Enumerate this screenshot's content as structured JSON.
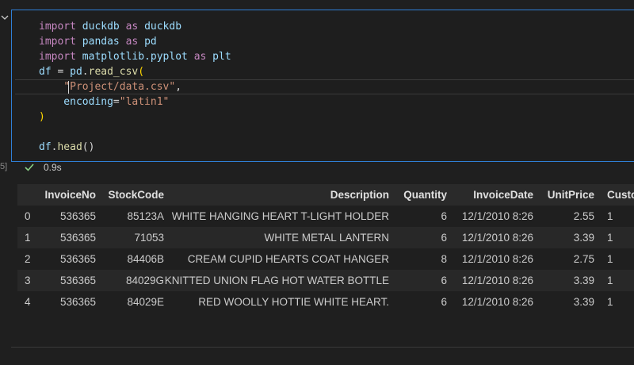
{
  "gutter": {
    "cell_label": "5]"
  },
  "code": {
    "lines": [
      [
        {
          "text": "import",
          "color": "#c586c0"
        },
        {
          "text": " duckdb ",
          "color": "#9cdcfe"
        },
        {
          "text": "as",
          "color": "#c586c0"
        },
        {
          "text": " duckdb",
          "color": "#9cdcfe"
        }
      ],
      [
        {
          "text": "import",
          "color": "#c586c0"
        },
        {
          "text": " pandas ",
          "color": "#9cdcfe"
        },
        {
          "text": "as",
          "color": "#c586c0"
        },
        {
          "text": " pd",
          "color": "#9cdcfe"
        }
      ],
      [
        {
          "text": "import",
          "color": "#c586c0"
        },
        {
          "text": " matplotlib.pyplot ",
          "color": "#9cdcfe"
        },
        {
          "text": "as",
          "color": "#c586c0"
        },
        {
          "text": " plt",
          "color": "#9cdcfe"
        }
      ],
      [
        {
          "text": "df",
          "color": "#9cdcfe"
        },
        {
          "text": " = ",
          "color": "#d4d4d4"
        },
        {
          "text": "pd",
          "color": "#9cdcfe"
        },
        {
          "text": ".",
          "color": "#d4d4d4"
        },
        {
          "text": "read_csv",
          "color": "#dcdcaa"
        },
        {
          "text": "(",
          "color": "#ffd700"
        }
      ],
      [
        {
          "text": "    \"Project/data.csv\"",
          "color": "#ce9178"
        },
        {
          "text": ",",
          "color": "#d4d4d4"
        }
      ],
      [
        {
          "text": "    encoding",
          "color": "#9cdcfe"
        },
        {
          "text": "=",
          "color": "#d4d4d4"
        },
        {
          "text": "\"latin1\"",
          "color": "#ce9178"
        }
      ],
      [
        {
          "text": ")",
          "color": "#ffd700"
        }
      ],
      [],
      [
        {
          "text": "df",
          "color": "#9cdcfe"
        },
        {
          "text": ".",
          "color": "#d4d4d4"
        },
        {
          "text": "head",
          "color": "#dcdcaa"
        },
        {
          "text": "()",
          "color": "#d4d4d4"
        }
      ]
    ]
  },
  "status": {
    "duration": "0.9s",
    "color": "#89d185"
  },
  "table": {
    "columns": [
      null,
      "InvoiceNo",
      "StockCode",
      "Description",
      "Quantity",
      "InvoiceDate",
      "UnitPrice",
      "Custo"
    ],
    "rows": [
      [
        "0",
        "536365",
        "85123A",
        "WHITE HANGING HEART T-LIGHT HOLDER",
        "6",
        "12/1/2010 8:26",
        "2.55",
        "1"
      ],
      [
        "1",
        "536365",
        "71053",
        "WHITE METAL LANTERN",
        "6",
        "12/1/2010 8:26",
        "3.39",
        "1"
      ],
      [
        "2",
        "536365",
        "84406B",
        "CREAM CUPID HEARTS COAT HANGER",
        "8",
        "12/1/2010 8:26",
        "2.75",
        "1"
      ],
      [
        "3",
        "536365",
        "84029G",
        "KNITTED UNION FLAG HOT WATER BOTTLE",
        "6",
        "12/1/2010 8:26",
        "3.39",
        "1"
      ],
      [
        "4",
        "536365",
        "84029E",
        "RED WOOLLY HOTTIE WHITE HEART.",
        "6",
        "12/1/2010 8:26",
        "3.39",
        "1"
      ]
    ]
  }
}
